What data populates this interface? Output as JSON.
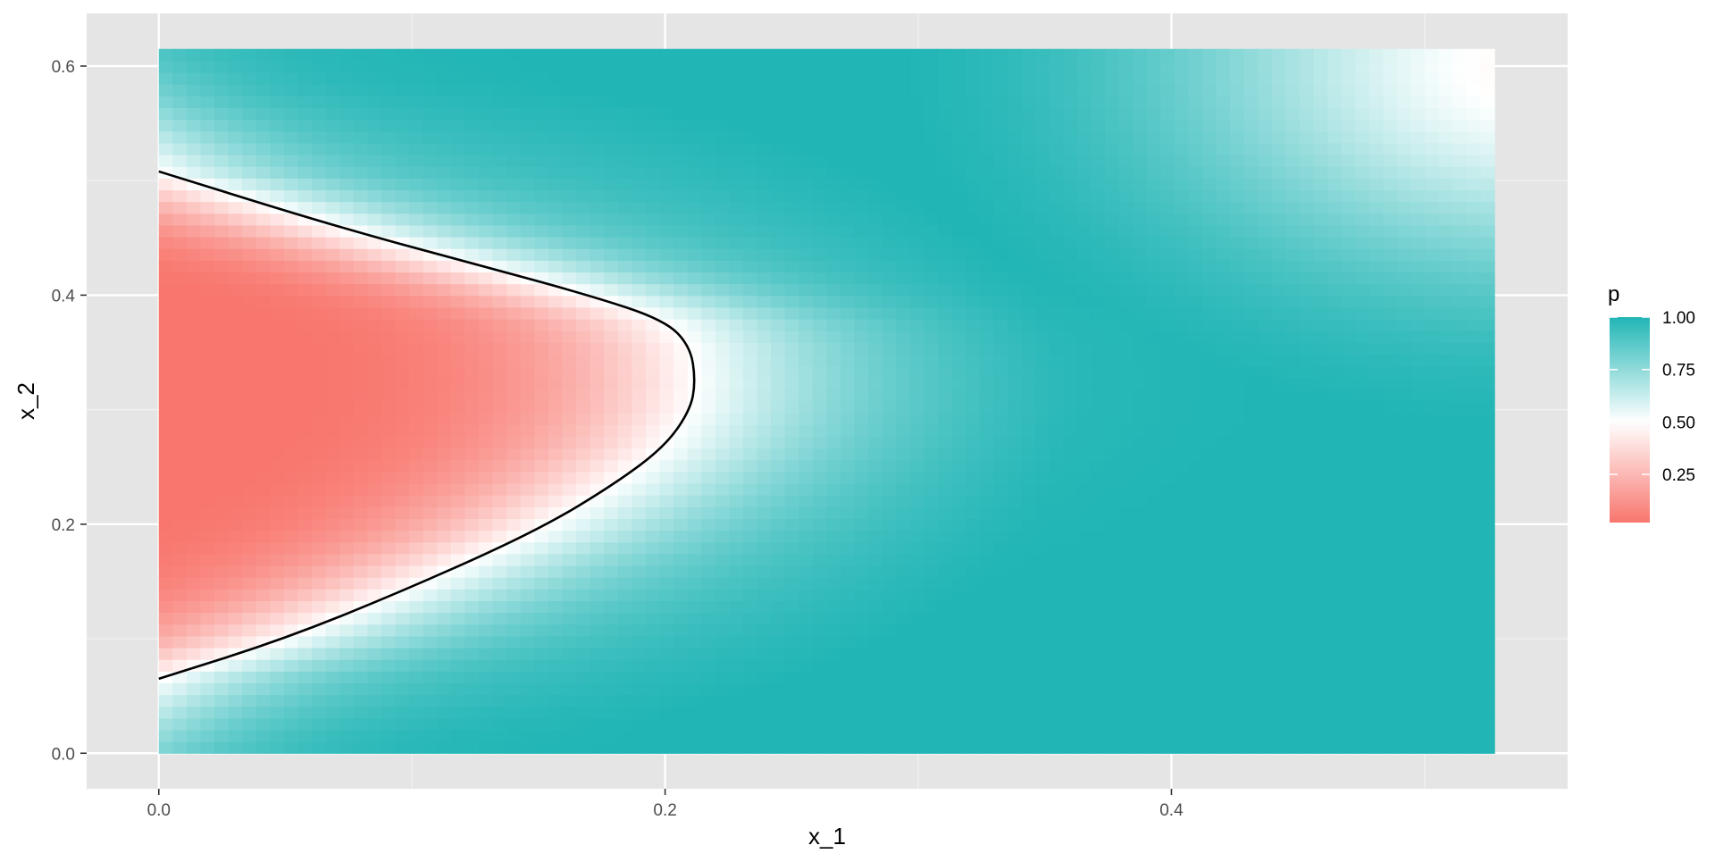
{
  "chart_data": {
    "type": "heatmap",
    "title": "",
    "xlabel": "x_1",
    "ylabel": "x_2",
    "x_range": [
      0,
      0.5276
    ],
    "y_range": [
      0,
      0.615
    ],
    "xlim": [
      -0.0285,
      0.5565
    ],
    "ylim": [
      -0.031,
      0.646
    ],
    "x_ticks": [
      {
        "value": 0.0,
        "label": "0.0"
      },
      {
        "value": 0.2,
        "label": "0.2"
      },
      {
        "value": 0.4,
        "label": "0.4"
      }
    ],
    "y_ticks": [
      {
        "value": 0.0,
        "label": "0.0"
      },
      {
        "value": 0.2,
        "label": "0.2"
      },
      {
        "value": 0.4,
        "label": "0.4"
      },
      {
        "value": 0.6,
        "label": "0.6"
      }
    ],
    "grid": true,
    "panel_background": "#e5e5e5",
    "fill_variable": "p",
    "color_scale": {
      "low": "#f8766d",
      "mid": "#ffffff",
      "high": "#21b5b5",
      "midpoint": 0.5,
      "limits": [
        0.02,
        1.0
      ]
    },
    "legend": {
      "title": "p",
      "position": "right",
      "breaks": [
        {
          "value": 1.0,
          "label": "1.00"
        },
        {
          "value": 0.75,
          "label": "0.75"
        },
        {
          "value": 0.5,
          "label": "0.50"
        },
        {
          "value": 0.25,
          "label": "0.25"
        }
      ]
    },
    "decision_boundary": {
      "level": 0.5,
      "color": "#000000",
      "points": [
        [
          0.0,
          0.065
        ],
        [
          0.05,
          0.1
        ],
        [
          0.1,
          0.145
        ],
        [
          0.15,
          0.195
        ],
        [
          0.18,
          0.235
        ],
        [
          0.2,
          0.268
        ],
        [
          0.21,
          0.3
        ],
        [
          0.212,
          0.325
        ],
        [
          0.21,
          0.355
        ],
        [
          0.2,
          0.378
        ],
        [
          0.17,
          0.4
        ],
        [
          0.12,
          0.43
        ],
        [
          0.07,
          0.46
        ],
        [
          0.0,
          0.508
        ]
      ]
    }
  }
}
